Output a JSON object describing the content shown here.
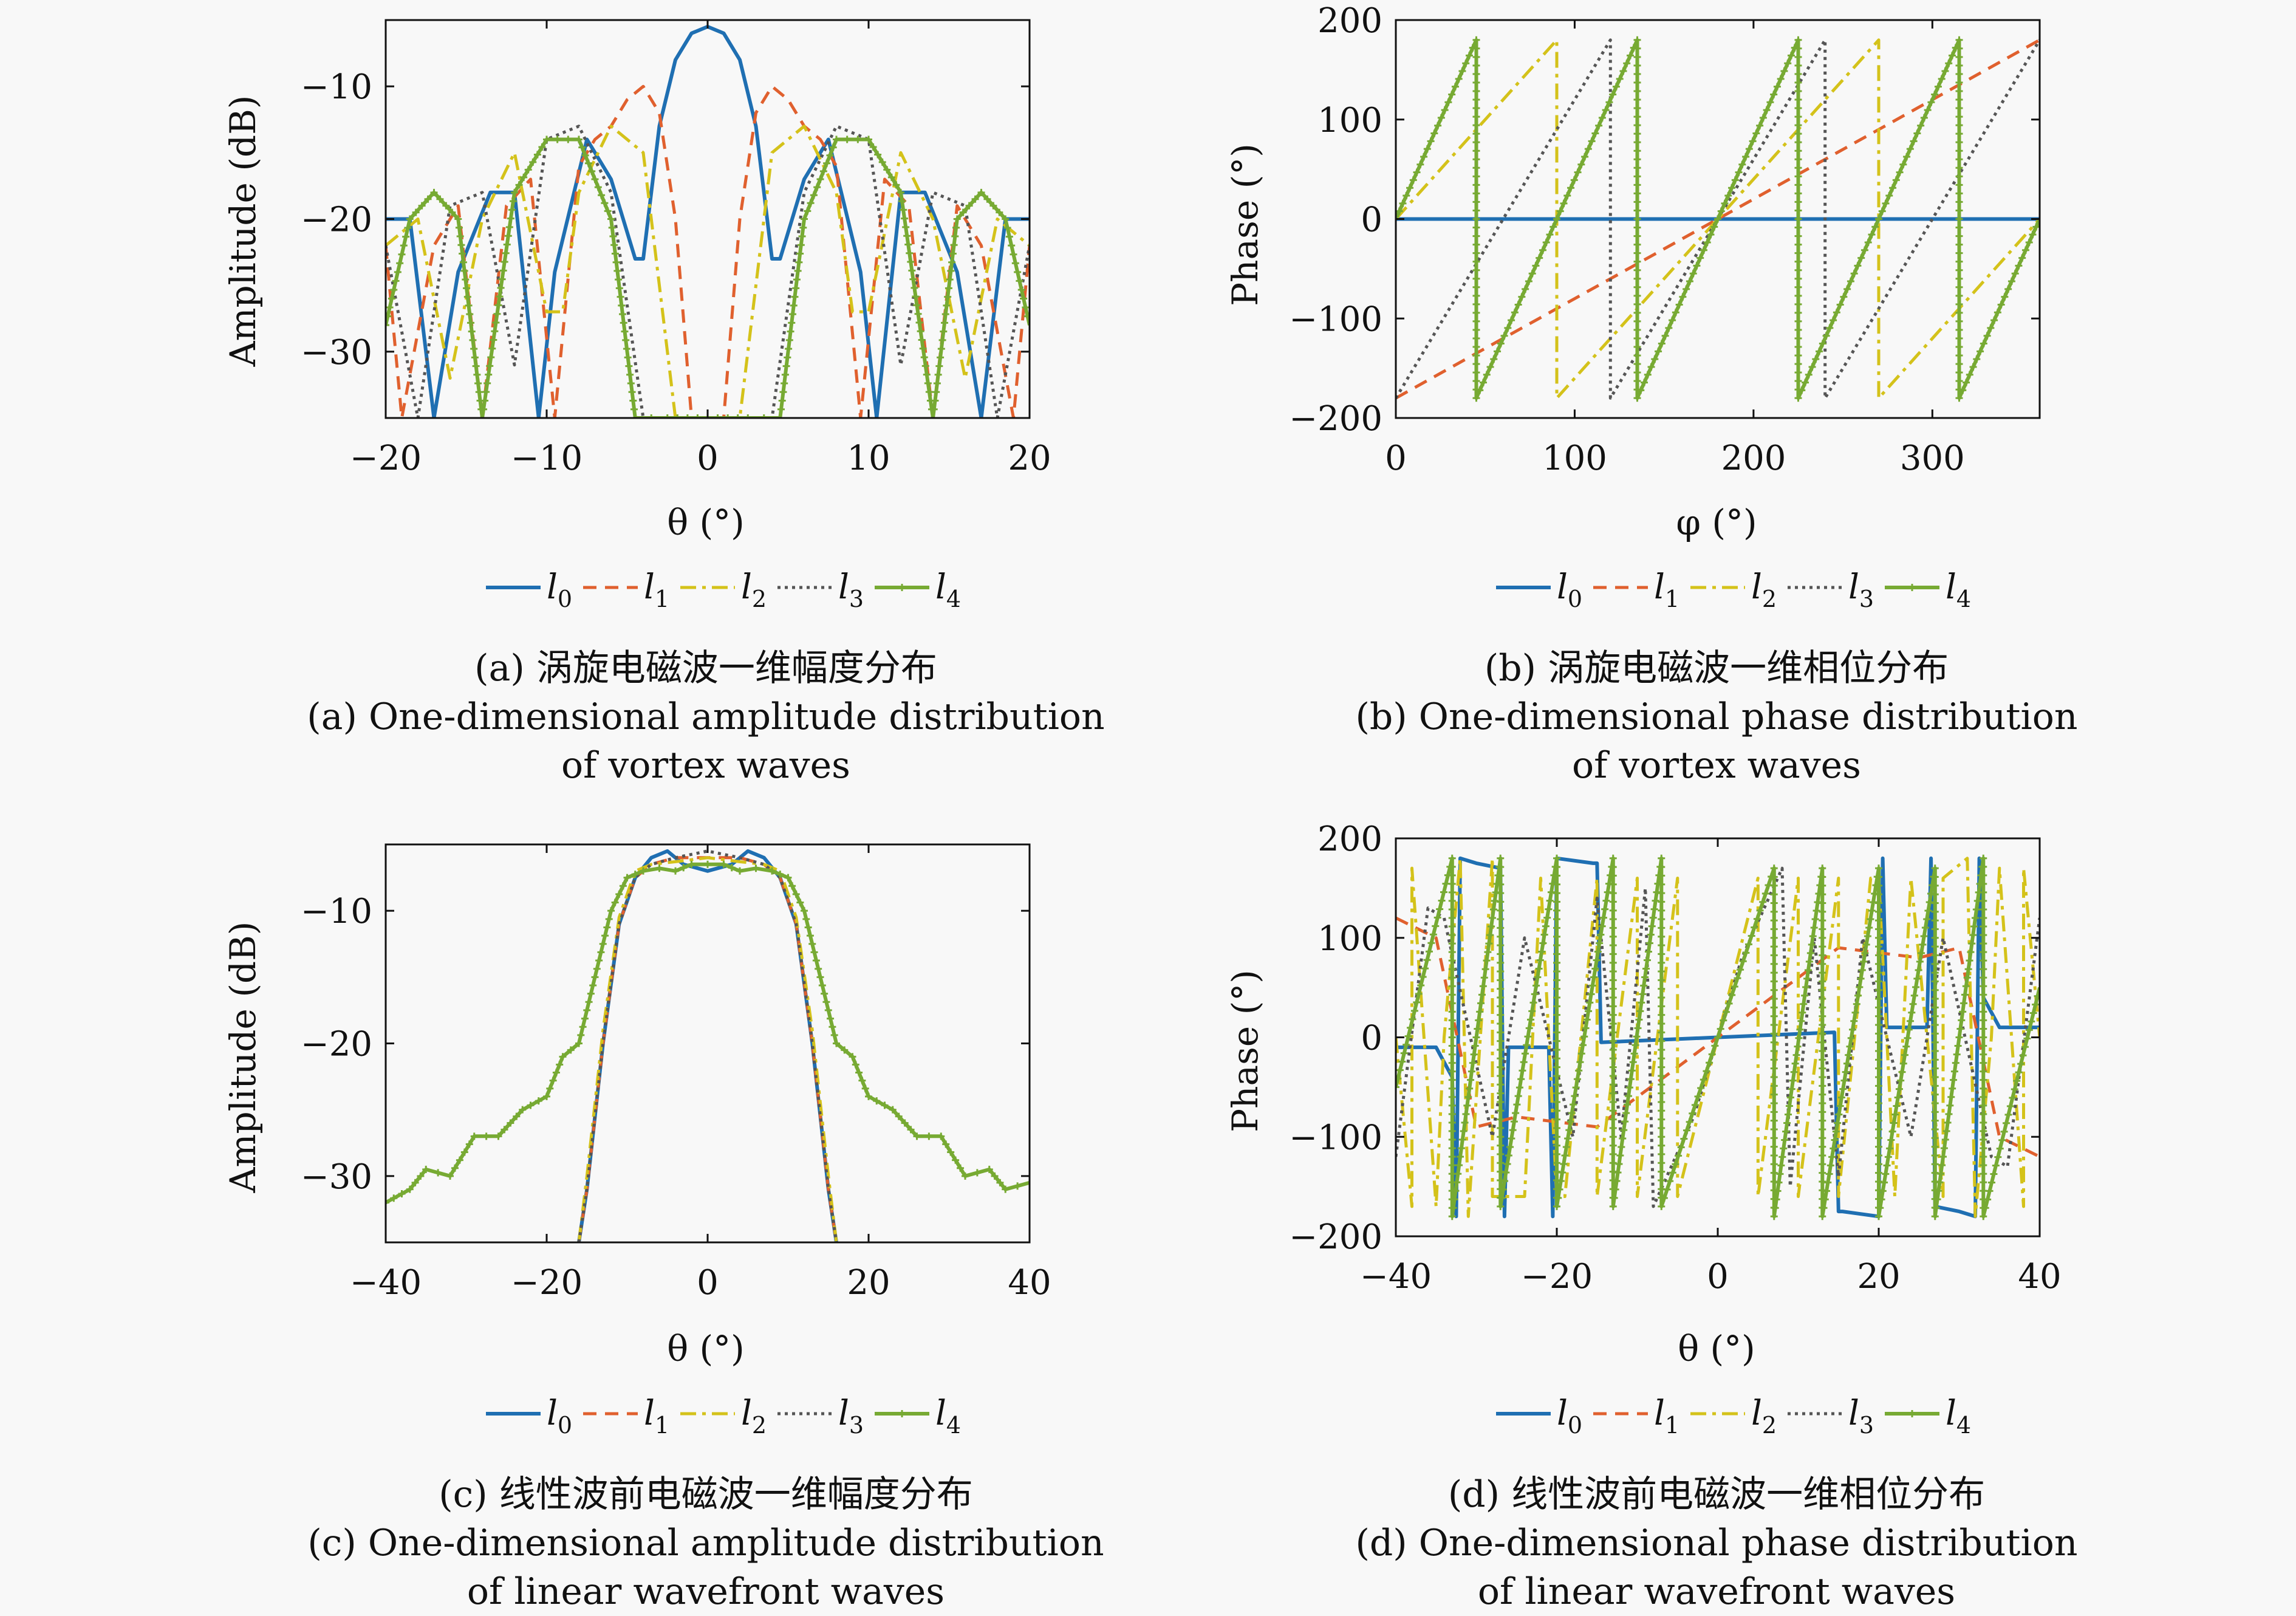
{
  "colors": {
    "l0": "#1f6fb2",
    "l1": "#e0602e",
    "l2": "#d4c21a",
    "l3": "#555555",
    "l4": "#77aa33"
  },
  "legend": [
    {
      "label": "l",
      "sub": "0",
      "key": "l0",
      "dash": ""
    },
    {
      "label": "l",
      "sub": "1",
      "key": "l1",
      "dash": "22,14"
    },
    {
      "label": "l",
      "sub": "2",
      "key": "l2",
      "dash": "26,10,6,10"
    },
    {
      "label": "l",
      "sub": "3",
      "key": "l3",
      "dash": "5,7"
    },
    {
      "label": "l",
      "sub": "4",
      "key": "l4",
      "dash": ""
    }
  ],
  "panels": [
    {
      "caption_cn": "(a) 涡旋电磁波一维幅度分布",
      "caption_en_1": "(a) One-dimensional amplitude distribution",
      "caption_en_2": "of vortex waves",
      "xlabel": "θ (°)",
      "ylabel": "Amplitude (dB)",
      "xticks": [
        "−20",
        "−10",
        "0",
        "10",
        "20"
      ],
      "yticks": [
        "−10",
        "−20",
        "−30"
      ]
    },
    {
      "caption_cn": "(b) 涡旋电磁波一维相位分布",
      "caption_en_1": "(b) One-dimensional phase distribution",
      "caption_en_2": "of vortex waves",
      "xlabel": "φ (°)",
      "ylabel": "Phase (°)",
      "xticks": [
        "0",
        "100",
        "200",
        "300"
      ],
      "yticks": [
        "200",
        "100",
        "0",
        "−100",
        "−200"
      ]
    },
    {
      "caption_cn": "(c) 线性波前电磁波一维幅度分布",
      "caption_en_1": "(c) One-dimensional amplitude distribution",
      "caption_en_2": "of linear wavefront waves",
      "xlabel": "θ (°)",
      "ylabel": "Amplitude (dB)",
      "xticks": [
        "−40",
        "−20",
        "0",
        "20",
        "40"
      ],
      "yticks": [
        "−10",
        "−20",
        "−30"
      ]
    },
    {
      "caption_cn": "(d) 线性波前电磁波一维相位分布",
      "caption_en_1": "(d) One-dimensional phase distribution",
      "caption_en_2": "of linear wavefront waves",
      "xlabel": "θ (°)",
      "ylabel": "Phase (°)",
      "xticks": [
        "−40",
        "−20",
        "0",
        "20",
        "40"
      ],
      "yticks": [
        "200",
        "100",
        "0",
        "−100",
        "−200"
      ]
    }
  ],
  "chart_data": [
    {
      "type": "line",
      "xlim": [
        -20,
        20
      ],
      "ylim": [
        -35,
        -5
      ],
      "grid": false,
      "legend_position": "bottom",
      "xtick_values": [
        -20,
        -10,
        0,
        10,
        20
      ],
      "ytick_values": [
        -10,
        -20,
        -30
      ],
      "series": [
        {
          "name": "l0",
          "x": [
            -20,
            -18.5,
            -17,
            -15.5,
            -13.5,
            -12,
            -10.5,
            -9.5,
            -7.5,
            -6,
            -4.5,
            -4,
            -3,
            -2,
            -1,
            0,
            1,
            2,
            3,
            4,
            4.5,
            6,
            7.5,
            9.5,
            10.5,
            12,
            13.5,
            15.5,
            17,
            18.5,
            20
          ],
          "y": [
            -20,
            -20,
            -35,
            -24,
            -18,
            -18,
            -35,
            -24,
            -14,
            -17,
            -23,
            -23,
            -13,
            -8,
            -6,
            -5.5,
            -6,
            -8,
            -13,
            -23,
            -23,
            -17,
            -14,
            -24,
            -35,
            -18,
            -18,
            -24,
            -35,
            -20,
            -20
          ]
        },
        {
          "name": "l1",
          "x": [
            -20,
            -19,
            -17,
            -15.5,
            -14,
            -12.5,
            -11,
            -9.5,
            -8,
            -7,
            -6,
            -5,
            -4,
            -3,
            -2,
            -1,
            0,
            1,
            2,
            3,
            4,
            5,
            6,
            7,
            8,
            9.5,
            11,
            12.5,
            14,
            15.5,
            17,
            19,
            20
          ],
          "y": [
            -22,
            -35,
            -22,
            -19,
            -35,
            -19,
            -17,
            -35,
            -16,
            -14,
            -13,
            -11,
            -10,
            -12,
            -20,
            -35,
            -35,
            -35,
            -20,
            -12,
            -10,
            -11,
            -13,
            -14,
            -16,
            -35,
            -17,
            -19,
            -35,
            -19,
            -22,
            -35,
            -22
          ]
        },
        {
          "name": "l2",
          "x": [
            -20,
            -18,
            -16,
            -14,
            -12,
            -10,
            -9,
            -8,
            -6,
            -4,
            -2,
            -1,
            0,
            1,
            2,
            4,
            6,
            8,
            9,
            10,
            12,
            14,
            16,
            18,
            20
          ],
          "y": [
            -22,
            -20,
            -32,
            -20,
            -15,
            -27,
            -27,
            -18,
            -13,
            -15,
            -35,
            -35,
            -35,
            -35,
            -35,
            -15,
            -13,
            -18,
            -27,
            -27,
            -15,
            -20,
            -32,
            -20,
            -22
          ]
        },
        {
          "name": "l3",
          "x": [
            -20,
            -18,
            -16,
            -14,
            -12,
            -10,
            -8,
            -6,
            -4,
            -3,
            -2,
            0,
            2,
            3,
            4,
            6,
            8,
            10,
            12,
            14,
            16,
            18,
            20
          ],
          "y": [
            -22,
            -35,
            -19,
            -18,
            -31,
            -14,
            -13,
            -18,
            -35,
            -35,
            -35,
            -35,
            -35,
            -35,
            -35,
            -18,
            -13,
            -14,
            -31,
            -18,
            -19,
            -35,
            -22
          ]
        },
        {
          "name": "l4",
          "x": [
            -20,
            -18.5,
            -17,
            -15.5,
            -14,
            -12,
            -10,
            -8,
            -6,
            -4.5,
            -3.5,
            -2.5,
            0,
            2.5,
            3.5,
            4.5,
            6,
            8,
            10,
            12,
            14,
            15.5,
            17,
            18.5,
            20
          ],
          "y": [
            -28,
            -20,
            -18,
            -20,
            -35,
            -18,
            -14,
            -14,
            -20,
            -35,
            -35,
            -35,
            -35,
            -35,
            -35,
            -35,
            -20,
            -14,
            -14,
            -18,
            -35,
            -20,
            -18,
            -20,
            -28
          ]
        }
      ]
    },
    {
      "type": "line",
      "xlim": [
        0,
        360
      ],
      "ylim": [
        -200,
        200
      ],
      "grid": false,
      "legend_position": "bottom",
      "xtick_values": [
        0,
        100,
        200,
        300
      ],
      "ytick_values": [
        200,
        100,
        0,
        -100,
        -200
      ],
      "series": [
        {
          "name": "l0",
          "x": [
            0,
            360
          ],
          "y": [
            0,
            0
          ]
        },
        {
          "name": "l1",
          "x": [
            0,
            360
          ],
          "y": [
            -180,
            180
          ]
        },
        {
          "name": "l2",
          "x": [
            0,
            90,
            90,
            270,
            270,
            360
          ],
          "y": [
            0,
            180,
            -180,
            180,
            -180,
            0
          ]
        },
        {
          "name": "l3",
          "x": [
            0,
            120,
            120,
            240,
            240,
            360
          ],
          "y": [
            -180,
            180,
            -180,
            180,
            -180,
            180
          ]
        },
        {
          "name": "l4",
          "x": [
            0,
            45,
            45,
            135,
            135,
            225,
            225,
            315,
            315,
            360
          ],
          "y": [
            0,
            180,
            -180,
            180,
            -180,
            180,
            -180,
            180,
            -180,
            0
          ]
        }
      ]
    },
    {
      "type": "line",
      "xlim": [
        -40,
        40
      ],
      "ylim": [
        -35,
        -5
      ],
      "grid": false,
      "legend_position": "bottom",
      "xtick_values": [
        -40,
        -20,
        0,
        20,
        40
      ],
      "ytick_values": [
        -10,
        -20,
        -30
      ],
      "series": [
        {
          "name": "l0",
          "x": [
            -16,
            -15,
            -13,
            -11,
            -9,
            -7,
            -5,
            -3,
            0,
            3,
            5,
            7,
            9,
            11,
            13,
            15,
            16
          ],
          "y": [
            -35,
            -31,
            -20,
            -11,
            -7.5,
            -6,
            -5.5,
            -6.5,
            -7,
            -6.5,
            -5.5,
            -6,
            -7.5,
            -11,
            -20,
            -31,
            -35
          ]
        },
        {
          "name": "l1",
          "x": [
            -16,
            -15,
            -13,
            -11,
            -9,
            -7,
            -4,
            0,
            4,
            7,
            9,
            11,
            13,
            15,
            16
          ],
          "y": [
            -35,
            -31,
            -20,
            -11,
            -7.5,
            -6.5,
            -6,
            -6,
            -6,
            -6.5,
            -7.5,
            -11,
            -20,
            -31,
            -35
          ]
        },
        {
          "name": "l2",
          "x": [
            -16,
            -15,
            -13,
            -11,
            -9,
            -7,
            -4,
            0,
            4,
            7,
            9,
            11,
            13,
            15,
            16
          ],
          "y": [
            -35,
            -30,
            -19,
            -10.5,
            -7,
            -6.5,
            -6.3,
            -6,
            -6.3,
            -6.5,
            -7,
            -10.5,
            -19,
            -30,
            -35
          ]
        },
        {
          "name": "l3",
          "x": [
            -16,
            -15,
            -13,
            -11,
            -9,
            -7,
            -4,
            0,
            4,
            7,
            9,
            11,
            13,
            15,
            16
          ],
          "y": [
            -35,
            -31,
            -20,
            -11,
            -7.5,
            -6.5,
            -6,
            -5.5,
            -6,
            -6.5,
            -7.5,
            -11,
            -20,
            -31,
            -35
          ]
        },
        {
          "name": "l4",
          "x": [
            -40,
            -37,
            -35,
            -32,
            -29,
            -26,
            -23,
            -20,
            -18,
            -16,
            -14,
            -12,
            -10,
            -8,
            -6,
            -4,
            -2,
            0,
            2,
            4,
            6,
            8,
            10,
            12,
            14,
            16,
            18,
            20,
            23,
            26,
            29,
            32,
            35,
            37,
            40
          ],
          "y": [
            -32,
            -31,
            -29.5,
            -30,
            -27,
            -27,
            -25,
            -24,
            -21,
            -20,
            -15,
            -10,
            -7.5,
            -7,
            -6.8,
            -7,
            -6.5,
            -6.5,
            -6.5,
            -7,
            -6.8,
            -7,
            -7.5,
            -10,
            -15,
            -20,
            -21,
            -24,
            -25,
            -27,
            -27,
            -30,
            -29.5,
            -31,
            -30.5
          ]
        }
      ]
    },
    {
      "type": "line",
      "xlim": [
        -40,
        40
      ],
      "ylim": [
        -200,
        200
      ],
      "grid": false,
      "legend_position": "bottom",
      "xtick_values": [
        -40,
        -20,
        0,
        20,
        40
      ],
      "ytick_values": [
        200,
        100,
        0,
        -100,
        -200
      ],
      "series": [
        {
          "name": "l0",
          "x": [
            -40,
            -35,
            -33,
            -32.5,
            -32,
            -30,
            -27,
            -26.5,
            -26,
            -21,
            -20.5,
            -20,
            -15.5,
            -15,
            -14.5,
            0,
            14.5,
            15,
            15.5,
            20,
            20.5,
            21,
            26,
            26.5,
            27,
            30,
            32,
            32.5,
            33,
            35,
            40
          ],
          "y": [
            -10,
            -10,
            -40,
            -180,
            180,
            175,
            170,
            -180,
            -10,
            -10,
            -180,
            180,
            175,
            175,
            -5,
            0,
            5,
            -175,
            -175,
            -180,
            180,
            10,
            10,
            180,
            -170,
            -175,
            -180,
            180,
            40,
            10,
            10
          ]
        },
        {
          "name": "l1",
          "x": [
            -40,
            -35,
            -30,
            -25,
            -20,
            -15,
            -10,
            -5,
            0,
            5,
            10,
            15,
            20,
            25,
            30,
            35,
            40
          ],
          "y": [
            120,
            100,
            -90,
            -80,
            -85,
            -90,
            -60,
            -30,
            0,
            30,
            60,
            90,
            85,
            80,
            90,
            -100,
            -120
          ]
        },
        {
          "name": "l2",
          "x": [
            -40,
            -38,
            -38,
            -35,
            -34,
            -32,
            -31,
            -28,
            -28,
            -24,
            -22,
            -20,
            -19,
            -15,
            -15,
            -10,
            -10,
            -5,
            -5,
            0,
            5,
            5,
            10,
            10,
            15,
            15,
            19,
            20,
            22,
            24,
            28,
            28,
            31,
            32,
            34,
            35,
            38,
            38,
            40
          ],
          "y": [
            0,
            -170,
            170,
            -170,
            0,
            180,
            -180,
            180,
            -160,
            -160,
            160,
            -160,
            -160,
            160,
            -160,
            160,
            -160,
            160,
            -160,
            0,
            160,
            -160,
            160,
            -160,
            160,
            -160,
            160,
            160,
            -160,
            160,
            -160,
            160,
            180,
            -180,
            0,
            170,
            -170,
            170,
            0
          ]
        },
        {
          "name": "l3",
          "x": [
            -40,
            -36,
            -34,
            -28,
            -24,
            -18,
            -15,
            -12,
            -9,
            -8,
            -3,
            0,
            3,
            8,
            9,
            12,
            15,
            18,
            24,
            28,
            34,
            36,
            40
          ],
          "y": [
            -120,
            130,
            120,
            -100,
            100,
            -100,
            140,
            -100,
            150,
            -170,
            -80,
            0,
            80,
            170,
            -150,
            100,
            -140,
            100,
            -100,
            100,
            -120,
            -130,
            120
          ]
        },
        {
          "name": "l4",
          "x": [
            -40,
            -33,
            -33,
            -27,
            -27,
            -20,
            -20,
            -13,
            -13,
            -7,
            -7,
            0,
            7,
            7,
            13,
            13,
            20,
            20,
            27,
            27,
            33,
            33,
            40
          ],
          "y": [
            -50,
            180,
            -180,
            180,
            -170,
            180,
            -170,
            180,
            -170,
            180,
            -170,
            0,
            170,
            -180,
            170,
            -180,
            170,
            -180,
            170,
            -180,
            180,
            -180,
            50
          ]
        }
      ]
    }
  ]
}
